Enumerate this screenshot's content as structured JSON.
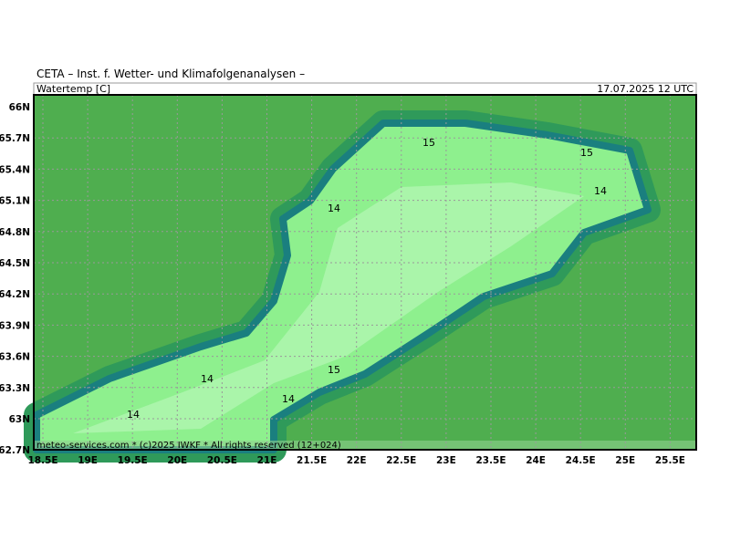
{
  "header": {
    "title": "CETA – Inst. f. Wetter- und Klimafolgenanalysen –",
    "variable": "Watertemp [C]",
    "valid": "17.07.2025 12 UTC"
  },
  "lat_labels": [
    "66N",
    "65.7N",
    "65.4N",
    "65.1N",
    "64.8N",
    "64.5N",
    "64.2N",
    "63.9N",
    "63.6N",
    "63.3N",
    "63N",
    "62.7N"
  ],
  "lon_labels": [
    "18.5E",
    "19E",
    "19.5E",
    "20E",
    "20.5E",
    "21E",
    "21.5E",
    "22E",
    "22.5E",
    "23E",
    "23.5E",
    "24E",
    "24.5E",
    "25E",
    "25.5E"
  ],
  "contour_labels": [
    "15",
    "15",
    "14",
    "14",
    "14",
    "15",
    "14",
    "14"
  ],
  "footer": "meteo-services.com * (c)2025 IWKF * All rights reserved (12+024)"
}
